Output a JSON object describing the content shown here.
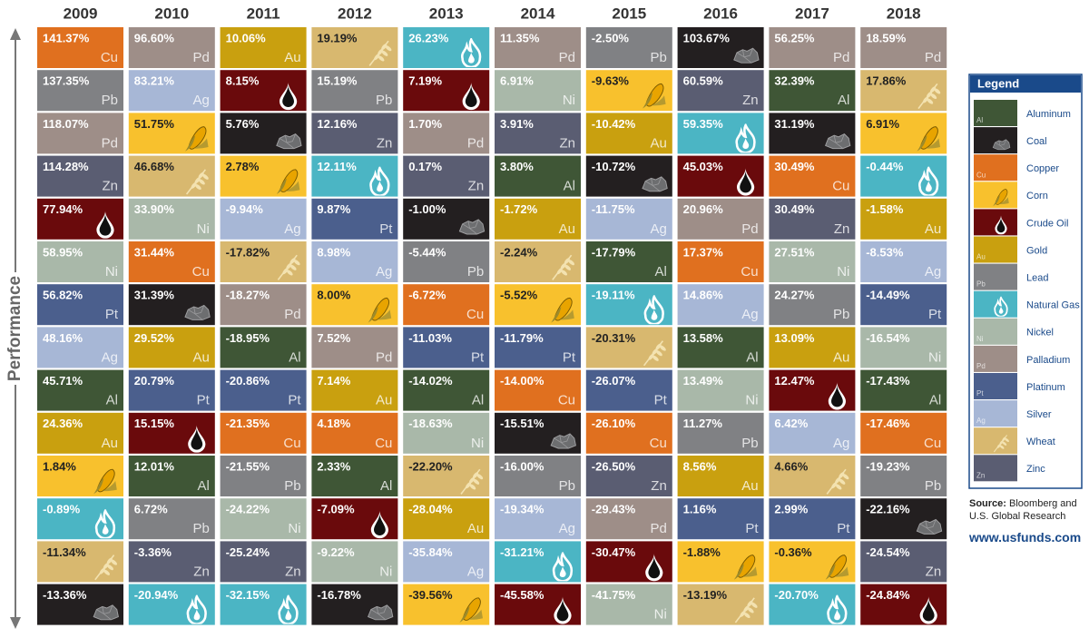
{
  "axis_label": "Performance",
  "years": [
    {
      "year": "2009",
      "cells": [
        {
          "value": "141.37%",
          "symbol": "Cu"
        },
        {
          "value": "137.35%",
          "symbol": "Pb"
        },
        {
          "value": "118.07%",
          "symbol": "Pd"
        },
        {
          "value": "114.28%",
          "symbol": "Zn"
        },
        {
          "value": "77.94%",
          "icon": "oil"
        },
        {
          "value": "58.95%",
          "symbol": "Ni"
        },
        {
          "value": "56.82%",
          "symbol": "Pt"
        },
        {
          "value": "48.16%",
          "symbol": "Ag"
        },
        {
          "value": "45.71%",
          "symbol": "Al"
        },
        {
          "value": "24.36%",
          "symbol": "Au"
        },
        {
          "value": "1.84%",
          "icon": "corn"
        },
        {
          "value": "-0.89%",
          "icon": "gas"
        },
        {
          "value": "-11.34%",
          "icon": "wheat"
        },
        {
          "value": "-13.36%",
          "icon": "coal"
        }
      ]
    },
    {
      "year": "2010",
      "cells": [
        {
          "value": "96.60%",
          "symbol": "Pd"
        },
        {
          "value": "83.21%",
          "symbol": "Ag"
        },
        {
          "value": "51.75%",
          "icon": "corn"
        },
        {
          "value": "46.68%",
          "icon": "wheat"
        },
        {
          "value": "33.90%",
          "symbol": "Ni"
        },
        {
          "value": "31.44%",
          "symbol": "Cu"
        },
        {
          "value": "31.39%",
          "icon": "coal"
        },
        {
          "value": "29.52%",
          "symbol": "Au"
        },
        {
          "value": "20.79%",
          "symbol": "Pt"
        },
        {
          "value": "15.15%",
          "icon": "oil"
        },
        {
          "value": "12.01%",
          "symbol": "Al"
        },
        {
          "value": "6.72%",
          "symbol": "Pb"
        },
        {
          "value": "-3.36%",
          "symbol": "Zn"
        },
        {
          "value": "-20.94%",
          "icon": "gas"
        }
      ]
    },
    {
      "year": "2011",
      "cells": [
        {
          "value": "10.06%",
          "symbol": "Au"
        },
        {
          "value": "8.15%",
          "icon": "oil"
        },
        {
          "value": "5.76%",
          "icon": "coal"
        },
        {
          "value": "2.78%",
          "icon": "corn"
        },
        {
          "value": "-9.94%",
          "symbol": "Ag"
        },
        {
          "value": "-17.82%",
          "icon": "wheat"
        },
        {
          "value": "-18.27%",
          "symbol": "Pd"
        },
        {
          "value": "-18.95%",
          "symbol": "Al"
        },
        {
          "value": "-20.86%",
          "symbol": "Pt"
        },
        {
          "value": "-21.35%",
          "symbol": "Cu"
        },
        {
          "value": "-21.55%",
          "symbol": "Pb"
        },
        {
          "value": "-24.22%",
          "symbol": "Ni"
        },
        {
          "value": "-25.24%",
          "symbol": "Zn"
        },
        {
          "value": "-32.15%",
          "icon": "gas"
        }
      ]
    },
    {
      "year": "2012",
      "cells": [
        {
          "value": "19.19%",
          "icon": "wheat"
        },
        {
          "value": "15.19%",
          "symbol": "Pb"
        },
        {
          "value": "12.16%",
          "symbol": "Zn"
        },
        {
          "value": "12.11%",
          "icon": "gas"
        },
        {
          "value": "9.87%",
          "symbol": "Pt"
        },
        {
          "value": "8.98%",
          "symbol": "Ag"
        },
        {
          "value": "8.00%",
          "icon": "corn"
        },
        {
          "value": "7.52%",
          "symbol": "Pd"
        },
        {
          "value": "7.14%",
          "symbol": "Au"
        },
        {
          "value": "4.18%",
          "symbol": "Cu"
        },
        {
          "value": "2.33%",
          "symbol": "Al"
        },
        {
          "value": "-7.09%",
          "icon": "oil"
        },
        {
          "value": "-9.22%",
          "symbol": "Ni"
        },
        {
          "value": "-16.78%",
          "icon": "coal"
        }
      ]
    },
    {
      "year": "2013",
      "cells": [
        {
          "value": "26.23%",
          "icon": "gas"
        },
        {
          "value": "7.19%",
          "icon": "oil"
        },
        {
          "value": "1.70%",
          "symbol": "Pd"
        },
        {
          "value": "0.17%",
          "symbol": "Zn"
        },
        {
          "value": "-1.00%",
          "icon": "coal"
        },
        {
          "value": "-5.44%",
          "symbol": "Pb"
        },
        {
          "value": "-6.72%",
          "symbol": "Cu"
        },
        {
          "value": "-11.03%",
          "symbol": "Pt"
        },
        {
          "value": "-14.02%",
          "symbol": "Al"
        },
        {
          "value": "-18.63%",
          "symbol": "Ni"
        },
        {
          "value": "-22.20%",
          "icon": "wheat"
        },
        {
          "value": "-28.04%",
          "symbol": "Au"
        },
        {
          "value": "-35.84%",
          "symbol": "Ag"
        },
        {
          "value": "-39.56%",
          "icon": "corn"
        }
      ]
    },
    {
      "year": "2014",
      "cells": [
        {
          "value": "11.35%",
          "symbol": "Pd"
        },
        {
          "value": "6.91%",
          "symbol": "Ni"
        },
        {
          "value": "3.91%",
          "symbol": "Zn"
        },
        {
          "value": "3.80%",
          "symbol": "Al"
        },
        {
          "value": "-1.72%",
          "symbol": "Au"
        },
        {
          "value": "-2.24%",
          "icon": "wheat"
        },
        {
          "value": "-5.52%",
          "icon": "corn"
        },
        {
          "value": "-11.79%",
          "symbol": "Pt"
        },
        {
          "value": "-14.00%",
          "symbol": "Cu"
        },
        {
          "value": "-15.51%",
          "icon": "coal"
        },
        {
          "value": "-16.00%",
          "symbol": "Pb"
        },
        {
          "value": "-19.34%",
          "symbol": "Ag"
        },
        {
          "value": "-31.21%",
          "icon": "gas"
        },
        {
          "value": "-45.58%",
          "icon": "oil"
        }
      ]
    },
    {
      "year": "2015",
      "cells": [
        {
          "value": "-2.50%",
          "symbol": "Pb"
        },
        {
          "value": "-9.63%",
          "icon": "corn"
        },
        {
          "value": "-10.42%",
          "symbol": "Au"
        },
        {
          "value": "-10.72%",
          "icon": "coal"
        },
        {
          "value": "-11.75%",
          "symbol": "Ag"
        },
        {
          "value": "-17.79%",
          "symbol": "Al"
        },
        {
          "value": "-19.11%",
          "icon": "gas"
        },
        {
          "value": "-20.31%",
          "icon": "wheat"
        },
        {
          "value": "-26.07%",
          "symbol": "Pt"
        },
        {
          "value": "-26.10%",
          "symbol": "Cu"
        },
        {
          "value": "-26.50%",
          "symbol": "Zn"
        },
        {
          "value": "-29.43%",
          "symbol": "Pd"
        },
        {
          "value": "-30.47%",
          "icon": "oil"
        },
        {
          "value": "-41.75%",
          "symbol": "Ni"
        }
      ]
    },
    {
      "year": "2016",
      "cells": [
        {
          "value": "103.67%",
          "icon": "coal"
        },
        {
          "value": "60.59%",
          "symbol": "Zn"
        },
        {
          "value": "59.35%",
          "icon": "gas"
        },
        {
          "value": "45.03%",
          "icon": "oil"
        },
        {
          "value": "20.96%",
          "symbol": "Pd"
        },
        {
          "value": "17.37%",
          "symbol": "Cu"
        },
        {
          "value": "14.86%",
          "symbol": "Ag"
        },
        {
          "value": "13.58%",
          "symbol": "Al"
        },
        {
          "value": "13.49%",
          "symbol": "Ni"
        },
        {
          "value": "11.27%",
          "symbol": "Pb"
        },
        {
          "value": "8.56%",
          "symbol": "Au"
        },
        {
          "value": "1.16%",
          "symbol": "Pt"
        },
        {
          "value": "-1.88%",
          "icon": "corn"
        },
        {
          "value": "-13.19%",
          "icon": "wheat"
        }
      ]
    },
    {
      "year": "2017",
      "cells": [
        {
          "value": "56.25%",
          "symbol": "Pd"
        },
        {
          "value": "32.39%",
          "symbol": "Al"
        },
        {
          "value": "31.19%",
          "icon": "coal"
        },
        {
          "value": "30.49%",
          "symbol": "Cu"
        },
        {
          "value": "30.49%",
          "symbol": "Zn"
        },
        {
          "value": "27.51%",
          "symbol": "Ni"
        },
        {
          "value": "24.27%",
          "symbol": "Pb"
        },
        {
          "value": "13.09%",
          "symbol": "Au"
        },
        {
          "value": "12.47%",
          "icon": "oil"
        },
        {
          "value": "6.42%",
          "symbol": "Ag"
        },
        {
          "value": "4.66%",
          "icon": "wheat"
        },
        {
          "value": "2.99%",
          "symbol": "Pt"
        },
        {
          "value": "-0.36%",
          "icon": "corn"
        },
        {
          "value": "-20.70%",
          "icon": "gas"
        }
      ]
    },
    {
      "year": "2018",
      "cells": [
        {
          "value": "18.59%",
          "symbol": "Pd"
        },
        {
          "value": "17.86%",
          "icon": "wheat"
        },
        {
          "value": "6.91%",
          "icon": "corn"
        },
        {
          "value": "-0.44%",
          "icon": "gas"
        },
        {
          "value": "-1.58%",
          "symbol": "Au"
        },
        {
          "value": "-8.53%",
          "symbol": "Ag"
        },
        {
          "value": "-14.49%",
          "symbol": "Pt"
        },
        {
          "value": "-16.54%",
          "symbol": "Ni"
        },
        {
          "value": "-17.43%",
          "symbol": "Al"
        },
        {
          "value": "-17.46%",
          "symbol": "Cu"
        },
        {
          "value": "-19.23%",
          "symbol": "Pb"
        },
        {
          "value": "-22.16%",
          "icon": "coal"
        },
        {
          "value": "-24.54%",
          "symbol": "Zn"
        },
        {
          "value": "-24.84%",
          "icon": "oil"
        }
      ]
    }
  ],
  "legend": {
    "title": "Legend",
    "items": [
      {
        "name": "Aluminum",
        "symbol": "Al",
        "color": "#3f5636"
      },
      {
        "name": "Coal",
        "icon": "coal",
        "color": "#231f20"
      },
      {
        "name": "Copper",
        "symbol": "Cu",
        "color": "#e0701f"
      },
      {
        "name": "Corn",
        "icon": "corn",
        "color": "#f8c12d"
      },
      {
        "name": "Crude Oil",
        "icon": "oil",
        "color": "#6a0a0c"
      },
      {
        "name": "Gold",
        "symbol": "Au",
        "color": "#c9a00f"
      },
      {
        "name": "Lead",
        "symbol": "Pb",
        "color": "#808184"
      },
      {
        "name": "Natural Gas",
        "icon": "gas",
        "color": "#4bb5c4"
      },
      {
        "name": "Nickel",
        "symbol": "Ni",
        "color": "#a9b8a9"
      },
      {
        "name": "Palladium",
        "symbol": "Pd",
        "color": "#9e8e88"
      },
      {
        "name": "Platinum",
        "symbol": "Pt",
        "color": "#4b5f8d"
      },
      {
        "name": "Silver",
        "symbol": "Ag",
        "color": "#a7b7d6"
      },
      {
        "name": "Wheat",
        "icon": "wheat",
        "color": "#d8b86f"
      },
      {
        "name": "Zinc",
        "symbol": "Zn",
        "color": "#5a5d72"
      }
    ]
  },
  "source_label": "Source:",
  "source": "Bloomberg and U.S. Global Research",
  "url": "www.usfunds.com"
}
